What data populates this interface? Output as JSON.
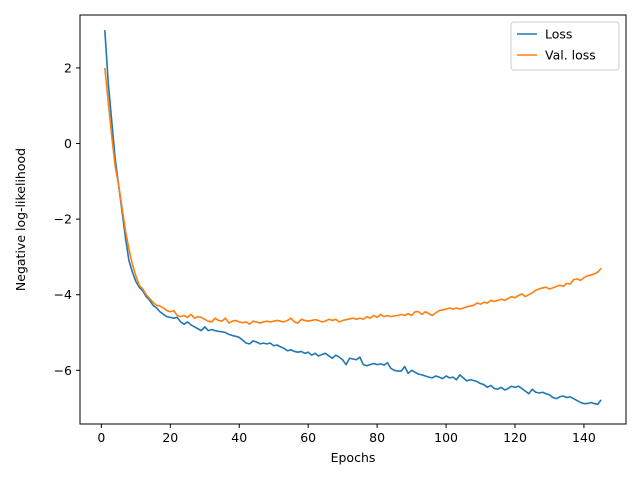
{
  "chart_data": {
    "type": "line",
    "title": "",
    "xlabel": "Epochs",
    "ylabel": "Negative log-likelihood",
    "xlim": [
      -6.2,
      152.2
    ],
    "ylim": [
      -7.42,
      3.4
    ],
    "xticks": [
      0,
      20,
      40,
      60,
      80,
      100,
      120,
      140
    ],
    "yticks": [
      -6,
      -4,
      -2,
      0,
      2
    ],
    "grid": false,
    "legend_position": "top-right",
    "series": [
      {
        "name": "Loss",
        "color": "#1f77b4",
        "x": [
          1,
          2,
          3,
          4,
          5,
          6,
          7,
          8,
          9,
          10,
          11,
          12,
          13,
          14,
          15,
          16,
          17,
          18,
          19,
          20,
          21,
          22,
          23,
          24,
          25,
          26,
          27,
          28,
          29,
          30,
          31,
          32,
          33,
          34,
          35,
          36,
          37,
          38,
          39,
          40,
          41,
          42,
          43,
          44,
          45,
          46,
          47,
          48,
          49,
          50,
          51,
          52,
          53,
          54,
          55,
          56,
          57,
          58,
          59,
          60,
          61,
          62,
          63,
          64,
          65,
          66,
          67,
          68,
          69,
          70,
          71,
          72,
          73,
          74,
          75,
          76,
          77,
          78,
          79,
          80,
          81,
          82,
          83,
          84,
          85,
          86,
          87,
          88,
          89,
          90,
          91,
          92,
          93,
          94,
          95,
          96,
          97,
          98,
          99,
          100,
          101,
          102,
          103,
          104,
          105,
          106,
          107,
          108,
          109,
          110,
          111,
          112,
          113,
          114,
          115,
          116,
          117,
          118,
          119,
          120,
          121,
          122,
          123,
          124,
          125,
          126,
          127,
          128,
          129,
          130,
          131,
          132,
          133,
          134,
          135,
          136,
          137,
          138,
          139,
          140,
          141,
          142,
          143,
          144,
          145
        ],
        "y": [
          3.0,
          1.6,
          0.6,
          -0.4,
          -1.1,
          -1.8,
          -2.5,
          -3.1,
          -3.4,
          -3.65,
          -3.8,
          -3.9,
          -4.05,
          -4.15,
          -4.28,
          -4.35,
          -4.45,
          -4.52,
          -4.58,
          -4.6,
          -4.62,
          -4.6,
          -4.72,
          -4.78,
          -4.72,
          -4.8,
          -4.85,
          -4.9,
          -4.95,
          -4.85,
          -4.95,
          -4.92,
          -4.95,
          -4.97,
          -4.98,
          -5.0,
          -5.05,
          -5.08,
          -5.1,
          -5.13,
          -5.2,
          -5.28,
          -5.3,
          -5.22,
          -5.25,
          -5.3,
          -5.28,
          -5.3,
          -5.28,
          -5.35,
          -5.33,
          -5.38,
          -5.42,
          -5.48,
          -5.46,
          -5.5,
          -5.52,
          -5.5,
          -5.55,
          -5.52,
          -5.6,
          -5.55,
          -5.62,
          -5.58,
          -5.55,
          -5.62,
          -5.68,
          -5.6,
          -5.65,
          -5.72,
          -5.85,
          -5.68,
          -5.7,
          -5.72,
          -5.65,
          -5.85,
          -5.88,
          -5.85,
          -5.82,
          -5.85,
          -5.83,
          -5.86,
          -5.8,
          -5.95,
          -6.0,
          -6.02,
          -6.02,
          -5.9,
          -6.08,
          -6.0,
          -6.05,
          -6.1,
          -6.12,
          -6.15,
          -6.18,
          -6.2,
          -6.15,
          -6.18,
          -6.22,
          -6.15,
          -6.2,
          -6.18,
          -6.25,
          -6.12,
          -6.2,
          -6.28,
          -6.25,
          -6.27,
          -6.3,
          -6.35,
          -6.38,
          -6.45,
          -6.4,
          -6.48,
          -6.5,
          -6.45,
          -6.52,
          -6.48,
          -6.42,
          -6.45,
          -6.42,
          -6.48,
          -6.55,
          -6.62,
          -6.5,
          -6.58,
          -6.6,
          -6.58,
          -6.62,
          -6.65,
          -6.72,
          -6.75,
          -6.7,
          -6.68,
          -6.72,
          -6.7,
          -6.75,
          -6.8,
          -6.85,
          -6.88,
          -6.88,
          -6.85,
          -6.88,
          -6.9,
          -6.78
        ]
      },
      {
        "name": "Val. loss",
        "color": "#ff7f0e",
        "x": [
          1,
          2,
          3,
          4,
          5,
          6,
          7,
          8,
          9,
          10,
          11,
          12,
          13,
          14,
          15,
          16,
          17,
          18,
          19,
          20,
          21,
          22,
          23,
          24,
          25,
          26,
          27,
          28,
          29,
          30,
          31,
          32,
          33,
          34,
          35,
          36,
          37,
          38,
          39,
          40,
          41,
          42,
          43,
          44,
          45,
          46,
          47,
          48,
          49,
          50,
          51,
          52,
          53,
          54,
          55,
          56,
          57,
          58,
          59,
          60,
          61,
          62,
          63,
          64,
          65,
          66,
          67,
          68,
          69,
          70,
          71,
          72,
          73,
          74,
          75,
          76,
          77,
          78,
          79,
          80,
          81,
          82,
          83,
          84,
          85,
          86,
          87,
          88,
          89,
          90,
          91,
          92,
          93,
          94,
          95,
          96,
          97,
          98,
          99,
          100,
          101,
          102,
          103,
          104,
          105,
          106,
          107,
          108,
          109,
          110,
          111,
          112,
          113,
          114,
          115,
          116,
          117,
          118,
          119,
          120,
          121,
          122,
          123,
          124,
          125,
          126,
          127,
          128,
          129,
          130,
          131,
          132,
          133,
          134,
          135,
          136,
          137,
          138,
          139,
          140,
          141,
          142,
          143,
          144,
          145
        ],
        "y": [
          2.0,
          1.1,
          0.2,
          -0.6,
          -1.1,
          -1.7,
          -2.3,
          -2.8,
          -3.2,
          -3.5,
          -3.75,
          -3.85,
          -4.0,
          -4.1,
          -4.2,
          -4.28,
          -4.3,
          -4.35,
          -4.42,
          -4.45,
          -4.42,
          -4.55,
          -4.58,
          -4.55,
          -4.6,
          -4.52,
          -4.62,
          -4.58,
          -4.6,
          -4.65,
          -4.7,
          -4.72,
          -4.62,
          -4.68,
          -4.7,
          -4.62,
          -4.75,
          -4.7,
          -4.68,
          -4.72,
          -4.74,
          -4.72,
          -4.78,
          -4.7,
          -4.72,
          -4.75,
          -4.72,
          -4.7,
          -4.72,
          -4.7,
          -4.68,
          -4.7,
          -4.72,
          -4.68,
          -4.62,
          -4.72,
          -4.75,
          -4.65,
          -4.68,
          -4.7,
          -4.68,
          -4.66,
          -4.68,
          -4.72,
          -4.7,
          -4.65,
          -4.68,
          -4.65,
          -4.72,
          -4.68,
          -4.66,
          -4.64,
          -4.62,
          -4.65,
          -4.62,
          -4.65,
          -4.58,
          -4.62,
          -4.55,
          -4.6,
          -4.52,
          -4.58,
          -4.55,
          -4.58,
          -4.56,
          -4.55,
          -4.52,
          -4.55,
          -4.5,
          -4.55,
          -4.45,
          -4.45,
          -4.52,
          -4.45,
          -4.5,
          -4.55,
          -4.48,
          -4.42,
          -4.4,
          -4.38,
          -4.35,
          -4.38,
          -4.35,
          -4.38,
          -4.35,
          -4.32,
          -4.3,
          -4.28,
          -4.22,
          -4.25,
          -4.2,
          -4.22,
          -4.15,
          -4.18,
          -4.15,
          -4.12,
          -4.15,
          -4.1,
          -4.05,
          -4.08,
          -4.02,
          -3.98,
          -4.05,
          -4.0,
          -3.95,
          -3.88,
          -3.85,
          -3.82,
          -3.8,
          -3.85,
          -3.82,
          -3.78,
          -3.75,
          -3.78,
          -3.7,
          -3.72,
          -3.6,
          -3.58,
          -3.62,
          -3.55,
          -3.5,
          -3.48,
          -3.45,
          -3.4,
          -3.3
        ]
      }
    ]
  }
}
